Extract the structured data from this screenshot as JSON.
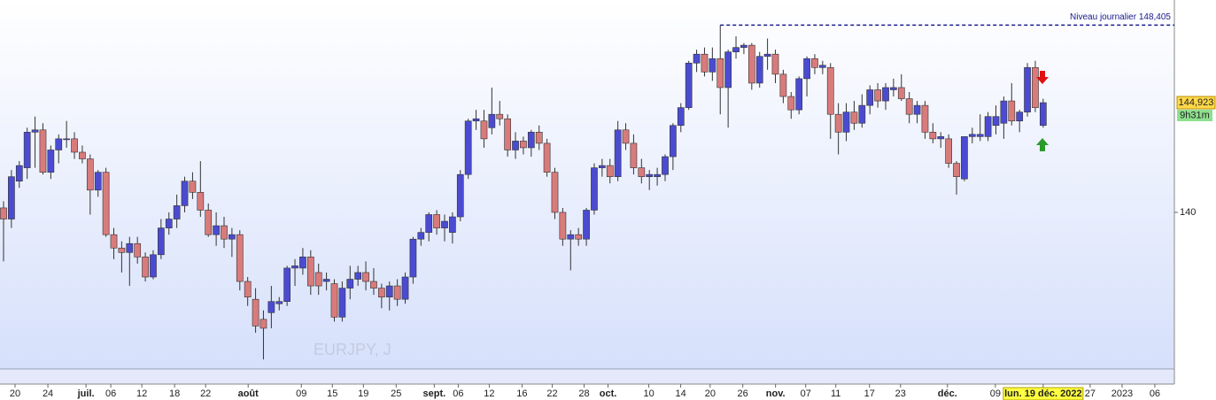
{
  "chart_data": {
    "type": "candlestick",
    "symbol": "EURJPY, J",
    "open": [
      140.2,
      139.7,
      141.4,
      142.0,
      143.6,
      143.7,
      141.8,
      142.8,
      143.3,
      143.3,
      142.7,
      142.4,
      141.0,
      141.8,
      139.0,
      138.4,
      138.2,
      138.6,
      138.0,
      137.1,
      138.1,
      139.3,
      139.7,
      140.3,
      141.4,
      140.9,
      140.1,
      139.0,
      139.4,
      138.8,
      139.0,
      136.9,
      136.1,
      135.2,
      135.5,
      135.9,
      136.0,
      137.5,
      137.5,
      138.0,
      137.3,
      136.9,
      136.8,
      135.3,
      136.6,
      137.0,
      137.3,
      136.9,
      136.6,
      136.2,
      136.7,
      136.1,
      137.1,
      138.8,
      139.1,
      139.9,
      139.3,
      139.1,
      139.8,
      141.7,
      144.1,
      144.1,
      143.8,
      144.4,
      144.2,
      142.8,
      143.2,
      142.9,
      143.6,
      143.1,
      141.8,
      140.0,
      138.8,
      139.0,
      138.8,
      140.1,
      142.0,
      142.1,
      141.6,
      143.7,
      143.1,
      142.0,
      141.6,
      141.6,
      141.7,
      142.5,
      143.9,
      144.7,
      146.7,
      147.1,
      146.3,
      146.9,
      145.6,
      147.2,
      147.4,
      147.5,
      145.8,
      147.0,
      147.1,
      146.2,
      145.2,
      144.6,
      146.0,
      146.9,
      146.5,
      146.5,
      144.4,
      143.6,
      144.5,
      144.0,
      144.8,
      145.5,
      145.0,
      145.5,
      145.6,
      145.1,
      144.4,
      144.8,
      143.6,
      143.3,
      143.3,
      142.2,
      141.5,
      143.4,
      143.4,
      143.4,
      143.9,
      144.0,
      145.0,
      144.1,
      144.5,
      146.5,
      143.9
    ],
    "high": [
      140.5,
      141.9,
      142.3,
      143.8,
      144.3,
      144.0,
      143.0,
      143.5,
      144.1,
      143.6,
      143.0,
      142.6,
      141.9,
      142.0,
      139.3,
      138.7,
      138.9,
      138.9,
      138.2,
      138.3,
      139.7,
      140.0,
      140.8,
      141.6,
      141.8,
      142.3,
      140.4,
      140.0,
      139.8,
      139.3,
      139.2,
      137.1,
      136.6,
      135.6,
      136.7,
      136.2,
      137.6,
      137.9,
      138.4,
      138.3,
      137.7,
      137.3,
      137.0,
      136.9,
      137.6,
      137.6,
      137.8,
      137.5,
      136.8,
      136.9,
      137.0,
      137.3,
      138.9,
      139.3,
      140.0,
      140.1,
      139.9,
      140.0,
      141.9,
      144.2,
      144.6,
      144.6,
      145.6,
      145.0,
      144.4,
      143.6,
      143.4,
      143.7,
      143.9,
      143.3,
      142.0,
      140.2,
      139.2,
      139.3,
      140.2,
      142.2,
      142.4,
      142.4,
      144.1,
      144.0,
      143.5,
      142.4,
      141.9,
      142.0,
      142.6,
      144.0,
      144.9,
      146.8,
      147.3,
      147.4,
      147.4,
      148.4,
      147.3,
      147.9,
      147.6,
      147.6,
      147.2,
      147.8,
      147.3,
      146.4,
      145.4,
      146.1,
      147.0,
      147.1,
      146.8,
      146.7,
      144.9,
      144.9,
      145.0,
      145.3,
      145.7,
      145.8,
      145.8,
      146.0,
      146.2,
      145.4,
      145.0,
      145.0,
      144.0,
      143.6,
      143.5,
      142.3,
      143.4,
      143.8,
      144.4,
      144.5,
      144.8,
      145.2,
      145.8,
      144.6,
      146.7,
      146.8,
      145.1
    ],
    "low": [
      137.8,
      139.3,
      141.1,
      141.5,
      142.0,
      141.7,
      141.5,
      142.2,
      142.9,
      142.4,
      142.2,
      139.9,
      140.7,
      138.9,
      137.9,
      137.3,
      136.7,
      137.7,
      136.9,
      137.0,
      137.9,
      139.0,
      139.3,
      140.0,
      140.6,
      139.8,
      138.9,
      138.5,
      138.4,
      138.0,
      136.5,
      135.8,
      134.6,
      133.4,
      134.8,
      135.6,
      135.8,
      136.7,
      137.2,
      136.3,
      136.3,
      136.5,
      135.1,
      135.1,
      136.1,
      136.7,
      136.5,
      136.3,
      135.7,
      135.6,
      135.8,
      135.9,
      136.8,
      138.5,
      138.7,
      139.0,
      138.7,
      138.6,
      139.6,
      141.5,
      143.7,
      142.9,
      143.5,
      143.9,
      142.5,
      142.4,
      142.6,
      142.5,
      142.8,
      141.6,
      139.7,
      138.5,
      137.4,
      138.5,
      138.5,
      139.9,
      141.6,
      141.3,
      141.4,
      142.8,
      141.7,
      141.3,
      141.0,
      141.2,
      141.4,
      141.9,
      143.6,
      144.6,
      146.3,
      146.1,
      145.9,
      144.4,
      143.8,
      146.9,
      147.1,
      145.5,
      145.6,
      146.4,
      145.8,
      144.9,
      144.2,
      144.4,
      145.2,
      146.2,
      146.2,
      143.3,
      142.6,
      143.2,
      143.7,
      143.8,
      144.4,
      144.7,
      144.6,
      145.2,
      145.0,
      144.0,
      144.0,
      143.3,
      143.1,
      142.9,
      142.0,
      140.8,
      141.4,
      143.1,
      143.2,
      143.2,
      143.5,
      143.3,
      143.9,
      143.6,
      144.3,
      144.5,
      143.8
    ],
    "close": [
      139.7,
      141.6,
      142.1,
      143.6,
      143.7,
      141.8,
      142.8,
      143.3,
      143.3,
      142.7,
      142.4,
      141.0,
      141.8,
      139.0,
      138.4,
      138.2,
      138.6,
      138.0,
      137.1,
      138.1,
      139.3,
      139.7,
      140.3,
      141.4,
      140.9,
      140.1,
      139.0,
      139.4,
      138.8,
      139.0,
      136.9,
      136.2,
      134.9,
      134.8,
      136.0,
      136.0,
      137.5,
      137.6,
      138.0,
      136.7,
      136.7,
      137.0,
      135.3,
      136.6,
      137.0,
      137.3,
      136.9,
      136.6,
      136.2,
      136.7,
      136.1,
      137.1,
      138.8,
      139.1,
      139.9,
      139.3,
      139.6,
      139.8,
      141.7,
      144.1,
      144.2,
      143.3,
      144.4,
      144.2,
      142.8,
      143.2,
      142.9,
      143.6,
      143.1,
      141.8,
      140.0,
      138.8,
      139.0,
      138.8,
      140.1,
      142.0,
      142.1,
      141.6,
      143.7,
      143.1,
      142.0,
      141.6,
      141.7,
      141.7,
      142.5,
      143.9,
      144.7,
      146.7,
      147.1,
      146.3,
      146.9,
      145.6,
      147.2,
      147.4,
      147.5,
      145.8,
      147.0,
      147.1,
      146.2,
      145.2,
      144.6,
      146.0,
      146.9,
      146.5,
      146.6,
      144.4,
      143.6,
      144.5,
      144.0,
      144.8,
      145.5,
      145.0,
      145.6,
      145.6,
      145.1,
      144.4,
      144.8,
      143.6,
      143.3,
      143.4,
      142.2,
      141.6,
      143.4,
      143.5,
      143.5,
      144.3,
      144.3,
      145.0,
      144.1,
      144.5,
      146.5,
      144.7,
      144.923
    ],
    "up_color": "#4b4bd2",
    "down_color": "#d97b7b",
    "ylim": [
      132.97,
      149.53
    ],
    "yticks": [
      140
    ],
    "xlim": [
      -0.45,
      148.66
    ],
    "xticks": [
      {
        "value": 1.46,
        "label": "20"
      },
      {
        "value": 5.63,
        "label": "24"
      },
      {
        "value": 10.47,
        "label": "juil."
      },
      {
        "value": 13.62,
        "label": "06"
      },
      {
        "value": 17.56,
        "label": "12"
      },
      {
        "value": 21.72,
        "label": "18"
      },
      {
        "value": 25.66,
        "label": "22"
      },
      {
        "value": 31.06,
        "label": "août"
      },
      {
        "value": 37.81,
        "label": "09"
      },
      {
        "value": 41.75,
        "label": "15"
      },
      {
        "value": 45.69,
        "label": "19"
      },
      {
        "value": 49.85,
        "label": "25"
      },
      {
        "value": 54.69,
        "label": "sept."
      },
      {
        "value": 57.73,
        "label": "06"
      },
      {
        "value": 61.67,
        "label": "12"
      },
      {
        "value": 65.83,
        "label": "16"
      },
      {
        "value": 69.67,
        "label": "22"
      },
      {
        "value": 73.71,
        "label": "28"
      },
      {
        "value": 76.75,
        "label": "oct."
      },
      {
        "value": 81.93,
        "label": "10"
      },
      {
        "value": 85.98,
        "label": "14"
      },
      {
        "value": 89.72,
        "label": "20"
      },
      {
        "value": 93.86,
        "label": "26"
      },
      {
        "value": 98.02,
        "label": "nov."
      },
      {
        "value": 101.85,
        "label": "07"
      },
      {
        "value": 105.67,
        "label": "11"
      },
      {
        "value": 109.95,
        "label": "17"
      },
      {
        "value": 113.89,
        "label": "23"
      },
      {
        "value": 119.85,
        "label": "déc."
      },
      {
        "value": 125.93,
        "label": "09"
      },
      {
        "value": 132,
        "label": "lun. 19 déc. 2022"
      },
      {
        "value": 137.97,
        "label": "27"
      },
      {
        "value": 142.02,
        "label": "2023"
      },
      {
        "value": 146.18,
        "label": "06"
      }
    ],
    "level": {
      "value": 148.405,
      "start": 91,
      "label": "Niveau journalier 148,405",
      "color": "#1a1a8c"
    },
    "last_price": {
      "value": 144.923,
      "label": "144,923"
    },
    "countdown": "9h31m"
  }
}
